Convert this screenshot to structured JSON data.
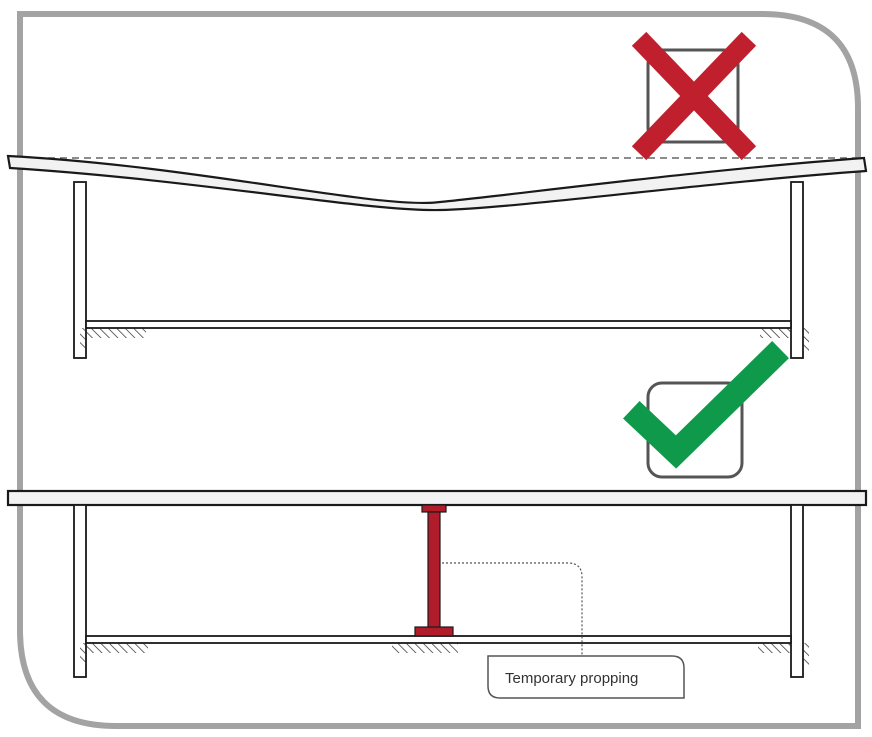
{
  "colors": {
    "frame": "#a3a3a3",
    "line": "#1a1a1a",
    "slab_fill": "#f2f2f2",
    "cross": "#c0202e",
    "check": "#0f9a4b",
    "prop": "#b01c2a",
    "box": "#555555"
  },
  "diagram": {
    "top_panel": {
      "status": "incorrect",
      "icon": "cross-icon",
      "state": "slab deflecting without support"
    },
    "bottom_panel": {
      "status": "correct",
      "icon": "check-icon",
      "state": "slab supported by temporary prop"
    },
    "callout": {
      "label": "Temporary propping"
    }
  }
}
